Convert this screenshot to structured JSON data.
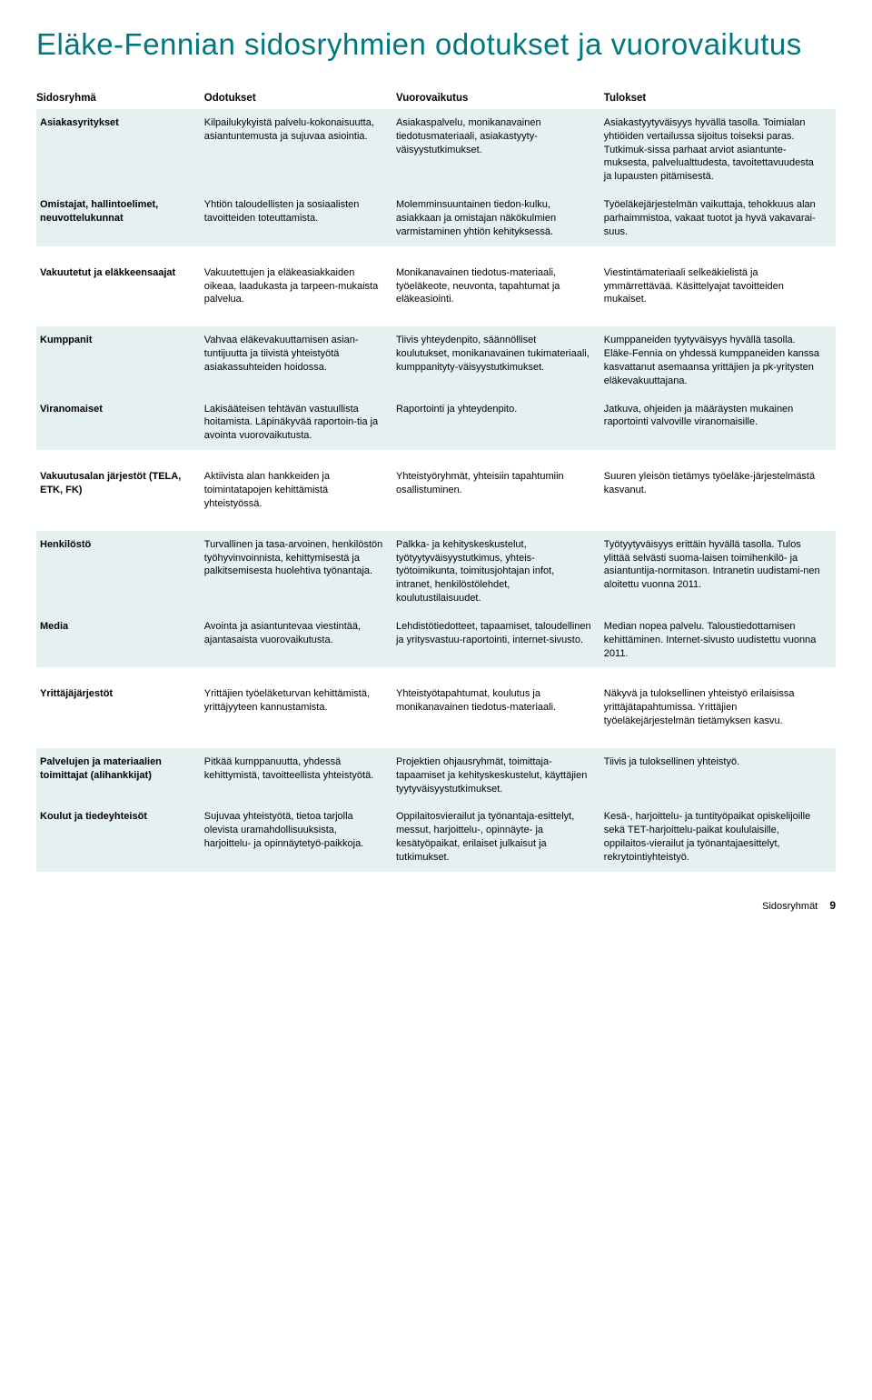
{
  "title": "Eläke-Fennian sidosryhmien odotukset ja vuorovaikutus",
  "columns": [
    "Sidosryhmä",
    "Odotukset",
    "Vuorovaikutus",
    "Tulokset"
  ],
  "rows": [
    {
      "group": "Asiakasyritykset",
      "expectations": "Kilpailukykyistä palvelu-kokonaisuutta, asiantuntemusta ja sujuvaa asiointia.",
      "interaction": "Asiakaspalvelu, monikanavainen tiedotusmateriaali, asiakastyyty-väisyystutkimukset.",
      "results": "Asiakastyytyväisyys hyvällä tasolla. Toimialan yhtiöiden vertailussa sijoitus toiseksi paras. Tutkimuk-sissa parhaat arviot asiantunte-muksesta, palvelualttudesta, tavoitettavuudesta ja lupausten pitämisestä.",
      "stripe": "even"
    },
    {
      "group": "Omistajat, hallintoelimet, neuvottelukunnat",
      "expectations": "Yhtiön taloudellisten ja sosiaalisten tavoitteiden toteuttamista.",
      "interaction": "Molemminsuuntainen tiedon-kulku, asiakkaan ja omistajan näkökulmien varmistaminen yhtiön kehityksessä.",
      "results": "Työeläkejärjestelmän vaikuttaja, tehokkuus alan parhaimmistoa, vakaat tuotot ja hyvä vakavarai-suus.",
      "stripe": "even"
    },
    {
      "group": "Vakuutetut ja eläkkeensaajat",
      "expectations": "Vakuutettujen ja eläkeasiakkaiden oikeaa, laadukasta ja tarpeen-mukaista palvelua.",
      "interaction": "Monikanavainen tiedotus-materiaali, työeläkeote, neuvonta, tapahtumat ja eläkeasiointi.",
      "results": "Viestintämateriaali selkeäkielistä ja ymmärrettävää. Käsittelyajat tavoitteiden mukaiset.",
      "stripe": "odd"
    },
    {
      "group": "Kumppanit",
      "expectations": "Vahvaa eläkevakuuttamisen asian-tuntijuutta ja tiivistä yhteistyötä asiakassuhteiden hoidossa.",
      "interaction": "Tiivis yhteydenpito, säännölliset koulutukset, monikanavainen tukimateriaali, kumppanityty-väisyystutkimukset.",
      "results": "Kumppaneiden tyytyväisyys hyvällä tasolla. Eläke-Fennia on yhdessä kumppaneiden kanssa kasvattanut asemaansa yrittäjien ja pk-yritysten eläkevakuuttajana.",
      "stripe": "even"
    },
    {
      "group": "Viranomaiset",
      "expectations": "Lakisääteisen tehtävän vastuullista hoitamista. Läpinäkyvää raportoin-tia ja avointa vuorovaikutusta.",
      "interaction": "Raportointi ja yhteydenpito.",
      "results": "Jatkuva, ohjeiden ja määräysten mukainen raportointi valvoville viranomaisille.",
      "stripe": "even"
    },
    {
      "group": "Vakuutusalan järjestöt (TELA, ETK, FK)",
      "expectations": "Aktiivista alan hankkeiden ja toimintatapojen kehittämistä yhteistyössä.",
      "interaction": "Yhteistyöryhmät, yhteisiin tapahtumiin osallistuminen.",
      "results": "Suuren yleisön tietämys työeläke-järjestelmästä kasvanut.",
      "stripe": "odd"
    },
    {
      "group": "Henkilöstö",
      "expectations": "Turvallinen ja tasa-arvoinen, henkilöstön työhyvinvoinnista, kehittymisestä ja palkitsemisesta huolehtiva työnantaja.",
      "interaction": "Palkka- ja kehityskeskustelut, työtyytyväisyystutkimus, yhteis-työtoimikunta, toimitusjohtajan infot, intranet, henkilöstölehdet, koulutustilaisuudet.",
      "results": "Työtyytyväisyys erittäin hyvällä tasolla. Tulos ylittää selvästi suoma-laisen toimihenkilö- ja asiantuntija-normitason. Intranetin uudistami-nen aloitettu vuonna 2011.",
      "stripe": "even"
    },
    {
      "group": "Media",
      "expectations": "Avointa ja asiantuntevaa viestintää, ajantasaista vuorovaikutusta.",
      "interaction": "Lehdistötiedotteet, tapaamiset, taloudellinen ja yritysvastuu-raportointi, internet-sivusto.",
      "results": "Median nopea palvelu. Taloustiedottamisen kehittäminen. Internet-sivusto uudistettu vuonna 2011.",
      "stripe": "even"
    },
    {
      "group": "Yrittäjäjärjestöt",
      "expectations": "Yrittäjien työeläketurvan kehittämistä, yrittäjyyteen kannustamista.",
      "interaction": "Yhteistyötapahtumat, koulutus ja monikanavainen tiedotus-materiaali.",
      "results": "Näkyvä ja tuloksellinen yhteistyö erilaisissa yrittäjätapahtumissa. Yrittäjien työeläkejärjestelmän tietämyksen kasvu.",
      "stripe": "odd"
    },
    {
      "group": "Palvelujen ja materiaalien toimittajat (alihankkijat)",
      "expectations": "Pitkää kumppanuutta, yhdessä kehittymistä, tavoitteellista yhteistyötä.",
      "interaction": "Projektien ohjausryhmät, toimittaja-tapaamiset ja kehityskeskustelut, käyttäjien tyytyväisyystutkimukset.",
      "results": "Tiivis ja tuloksellinen yhteistyö.",
      "stripe": "even"
    },
    {
      "group": "Koulut ja tiedeyhteisöt",
      "expectations": "Sujuvaa yhteistyötä, tietoa tarjolla olevista uramahdollisuuksista, harjoittelu- ja opinnäytetyö-paikkoja.",
      "interaction": "Oppilaitosvierailut ja työnantaja-esittelyt, messut, harjoittelu-, opinnäyte- ja kesätyöpaikat, erilaiset julkaisut ja tutkimukset.",
      "results": "Kesä-, harjoittelu- ja tuntityöpaikat opiskelijoille sekä TET-harjoittelu-paikat koululaisille, oppilaitos-vierailut ja työnantajaesittelyt, rekrytointiyhteistyö.",
      "stripe": "even"
    }
  ],
  "footer": {
    "label": "Sidosryhmät",
    "page": "9"
  },
  "colors": {
    "heading": "#007880",
    "stripe_even": "#e5f0f0",
    "stripe_odd": "#ffffff",
    "text": "#000000",
    "background": "#ffffff"
  }
}
